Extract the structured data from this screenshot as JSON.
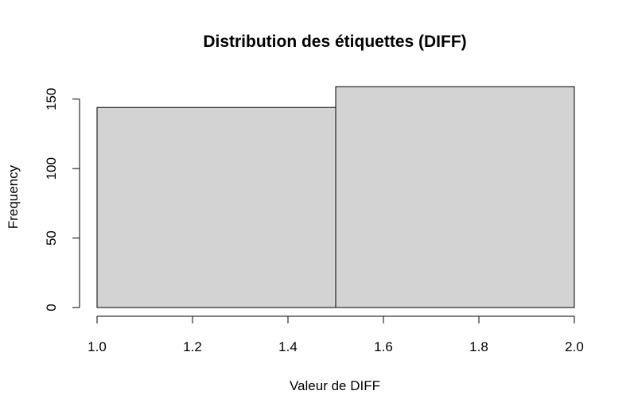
{
  "chart_data": {
    "type": "bar",
    "title": "Distribution des étiquettes (DIFF)",
    "xlabel": "Valeur de DIFF",
    "ylabel": "Frequency",
    "bins": [
      {
        "x0": 1.0,
        "x1": 1.5,
        "count": 144
      },
      {
        "x0": 1.5,
        "x1": 2.0,
        "count": 159
      }
    ],
    "xlim": [
      1.0,
      2.0
    ],
    "ylim": [
      0,
      159
    ],
    "xticks": [
      "1.0",
      "1.2",
      "1.4",
      "1.6",
      "1.8",
      "2.0"
    ],
    "yticks": [
      "0",
      "50",
      "100",
      "150"
    ],
    "grid": false,
    "bar_color": "#d3d3d3",
    "edge_color": "#000000"
  }
}
